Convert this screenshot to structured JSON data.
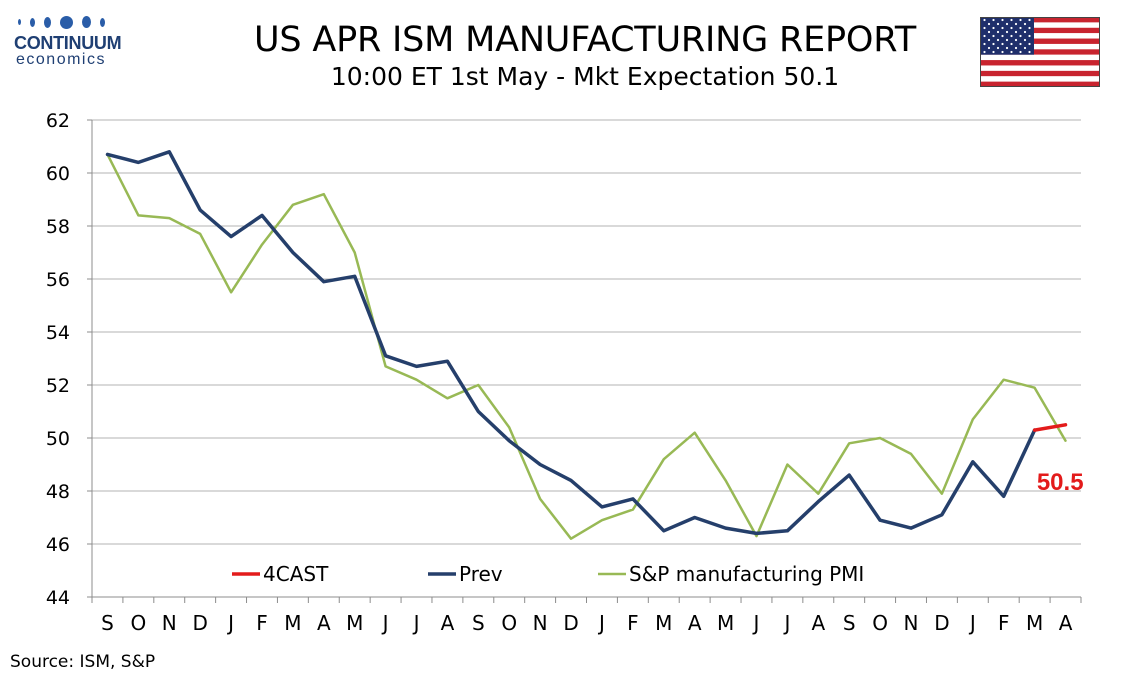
{
  "logo": {
    "brand": "CONTINUUM",
    "sub": "economics"
  },
  "header": {
    "title": "US APR ISM MANUFACTURING REPORT",
    "subtitle": "10:00 ET 1st May - Mkt Expectation 50.1"
  },
  "flag": {
    "name": "us-flag"
  },
  "colors": {
    "prev": "#253f6b",
    "sp": "#98b955",
    "forecast": "#e31b1b",
    "grid": "#b3b3b3"
  },
  "source": "Source: ISM, S&P",
  "chart_data": {
    "type": "line",
    "title": "",
    "xlabel": "",
    "ylabel": "",
    "ylim": [
      44,
      62
    ],
    "yticks": [
      44,
      46,
      48,
      50,
      52,
      54,
      56,
      58,
      60,
      62
    ],
    "grid": true,
    "legend_position": "bottom",
    "categories": [
      "S",
      "O",
      "N",
      "D",
      "J",
      "F",
      "M",
      "A",
      "M",
      "J",
      "J",
      "A",
      "S",
      "O",
      "N",
      "D",
      "J",
      "F",
      "M",
      "A",
      "M",
      "J",
      "J",
      "A",
      "S",
      "O",
      "N",
      "D",
      "J",
      "F",
      "M",
      "A"
    ],
    "series": [
      {
        "name": "4CAST",
        "key": "forecast",
        "values": [
          null,
          null,
          null,
          null,
          null,
          null,
          null,
          null,
          null,
          null,
          null,
          null,
          null,
          null,
          null,
          null,
          null,
          null,
          null,
          null,
          null,
          null,
          null,
          null,
          null,
          null,
          null,
          null,
          null,
          null,
          50.3,
          50.5
        ]
      },
      {
        "name": "Prev",
        "key": "prev",
        "values": [
          60.7,
          60.4,
          60.8,
          58.6,
          57.6,
          58.4,
          57.0,
          55.9,
          56.1,
          53.1,
          52.7,
          52.9,
          51.0,
          49.9,
          49.0,
          48.4,
          47.4,
          47.7,
          46.5,
          47.0,
          46.6,
          46.4,
          46.5,
          47.6,
          48.6,
          46.9,
          46.6,
          47.1,
          49.1,
          47.8,
          50.3,
          null
        ]
      },
      {
        "name": "S&P manufacturing PMI",
        "key": "sp",
        "values": [
          60.7,
          58.4,
          58.3,
          57.7,
          55.5,
          57.3,
          58.8,
          59.2,
          57.0,
          52.7,
          52.2,
          51.5,
          52.0,
          50.4,
          47.7,
          46.2,
          46.9,
          47.3,
          49.2,
          50.2,
          48.4,
          46.3,
          49.0,
          47.9,
          49.8,
          50.0,
          49.4,
          47.9,
          50.7,
          52.2,
          51.9,
          49.9
        ]
      }
    ],
    "annotation": {
      "text": "50.5"
    }
  }
}
